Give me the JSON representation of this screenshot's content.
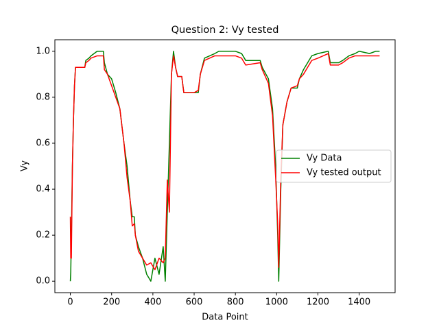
{
  "chart_data": {
    "type": "line",
    "title": "Question 2: Vy tested",
    "x_label": "Data Point",
    "y_label": "Vy",
    "x": [
      0,
      2,
      5,
      10,
      15,
      20,
      25,
      70,
      75,
      90,
      100,
      130,
      160,
      165,
      180,
      200,
      220,
      240,
      260,
      275,
      290,
      300,
      310,
      315,
      330,
      350,
      370,
      390,
      410,
      430,
      450,
      460,
      470,
      480,
      490,
      500,
      510,
      520,
      540,
      550,
      600,
      620,
      630,
      650,
      700,
      720,
      800,
      830,
      850,
      920,
      930,
      960,
      980,
      995,
      1005,
      1010,
      1020,
      1030,
      1050,
      1070,
      1100,
      1110,
      1130,
      1150,
      1170,
      1200,
      1250,
      1260,
      1300,
      1320,
      1350,
      1380,
      1400,
      1450,
      1480,
      1499
    ],
    "series": [
      {
        "name": "Vy Data",
        "color": "#008000",
        "values": [
          0,
          0.04,
          0.2,
          0.5,
          0.7,
          0.85,
          0.93,
          0.93,
          0.96,
          0.97,
          0.98,
          1.0,
          1.0,
          0.95,
          0.9,
          0.88,
          0.82,
          0.75,
          0.6,
          0.5,
          0.35,
          0.28,
          0.28,
          0.2,
          0.15,
          0.1,
          0.03,
          0.0,
          0.1,
          0.03,
          0.15,
          0.0,
          0.3,
          0.6,
          0.9,
          1.0,
          0.93,
          0.89,
          0.89,
          0.82,
          0.82,
          0.82,
          0.9,
          0.97,
          0.99,
          1.0,
          1.0,
          0.99,
          0.96,
          0.96,
          0.93,
          0.88,
          0.75,
          0.5,
          0.2,
          0.0,
          0.4,
          0.68,
          0.78,
          0.84,
          0.84,
          0.88,
          0.92,
          0.95,
          0.98,
          0.99,
          1.0,
          0.95,
          0.95,
          0.96,
          0.98,
          0.99,
          1.0,
          0.99,
          1.0,
          1.0
        ]
      },
      {
        "name": "Vy tested output",
        "color": "#ff0000",
        "values": [
          0.28,
          0.1,
          0.1,
          0.5,
          0.7,
          0.85,
          0.93,
          0.93,
          0.95,
          0.96,
          0.97,
          0.98,
          0.98,
          0.92,
          0.9,
          0.85,
          0.8,
          0.75,
          0.6,
          0.45,
          0.35,
          0.24,
          0.25,
          0.2,
          0.13,
          0.1,
          0.07,
          0.08,
          0.05,
          0.1,
          0.08,
          0.1,
          0.44,
          0.3,
          0.9,
          0.98,
          0.93,
          0.89,
          0.89,
          0.82,
          0.82,
          0.83,
          0.9,
          0.96,
          0.98,
          0.98,
          0.98,
          0.97,
          0.94,
          0.95,
          0.92,
          0.86,
          0.72,
          0.45,
          0.25,
          0.06,
          0.45,
          0.68,
          0.78,
          0.84,
          0.85,
          0.88,
          0.9,
          0.93,
          0.96,
          0.97,
          0.99,
          0.94,
          0.94,
          0.95,
          0.97,
          0.98,
          0.98,
          0.98,
          0.98,
          0.98
        ]
      }
    ],
    "xlim": [
      -75,
      1574
    ],
    "ylim": [
      -0.05,
      1.05
    ],
    "xticks": [
      0,
      200,
      400,
      600,
      800,
      1000,
      1200,
      1400
    ],
    "yticks": [
      {
        "value": 0,
        "label": "0.0"
      },
      0.2,
      0.4,
      0.6,
      0.8,
      {
        "value": 1,
        "label": "1.0"
      }
    ],
    "legend": "center right"
  }
}
